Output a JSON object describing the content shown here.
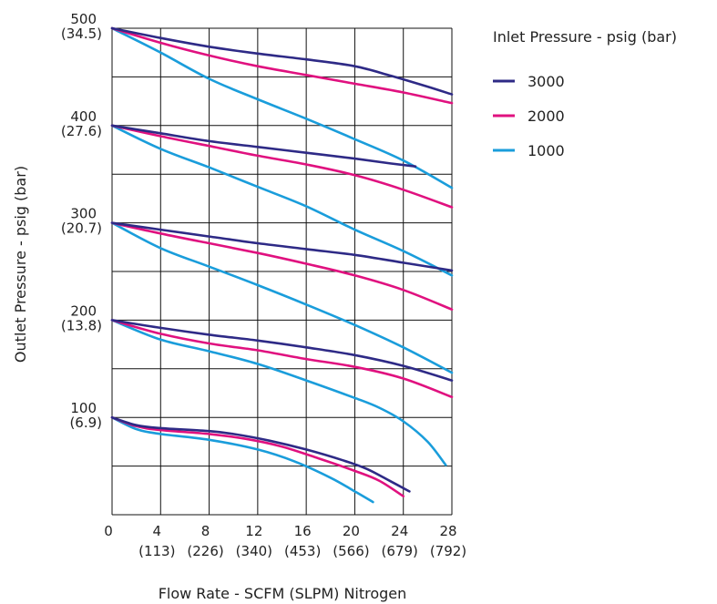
{
  "chart_data": {
    "type": "line",
    "xlabel": "Flow Rate - SCFM (SLPM) Nitrogen",
    "ylabel": "Outlet Pressure - psig (bar)",
    "xlim": [
      0,
      28
    ],
    "ylim": [
      0,
      500
    ],
    "grid": true,
    "x_ticks": [
      {
        "value": 0,
        "label": "0",
        "sub": ""
      },
      {
        "value": 4,
        "label": "4",
        "sub": "(113)"
      },
      {
        "value": 8,
        "label": "8",
        "sub": "(226)"
      },
      {
        "value": 12,
        "label": "12",
        "sub": "(340)"
      },
      {
        "value": 16,
        "label": "16",
        "sub": "(453)"
      },
      {
        "value": 20,
        "label": "20",
        "sub": "(566)"
      },
      {
        "value": 24,
        "label": "24",
        "sub": "(679)"
      },
      {
        "value": 28,
        "label": "28",
        "sub": "(792)"
      }
    ],
    "y_ticks": [
      {
        "value": 100,
        "label": "100",
        "sub": "(6.9)"
      },
      {
        "value": 200,
        "label": "200",
        "sub": "(13.8)"
      },
      {
        "value": 300,
        "label": "300",
        "sub": "(20.7)"
      },
      {
        "value": 400,
        "label": "400",
        "sub": "(27.6)"
      },
      {
        "value": 500,
        "label": "500",
        "sub": "(34.5)"
      }
    ],
    "legend": {
      "title": "Inlet Pressure - psig (bar)",
      "placement": "right"
    },
    "series": [
      {
        "name": "3000",
        "color": "#2e2a86",
        "curves": [
          [
            [
              0,
              500
            ],
            [
              4,
              490
            ],
            [
              8,
              481
            ],
            [
              12,
              474
            ],
            [
              16,
              468
            ],
            [
              20,
              461
            ],
            [
              23,
              451
            ],
            [
              26,
              440
            ],
            [
              28,
              432
            ]
          ],
          [
            [
              0,
              400
            ],
            [
              4,
              392
            ],
            [
              8,
              384
            ],
            [
              12,
              378
            ],
            [
              16,
              372
            ],
            [
              20,
              366
            ],
            [
              23,
              361
            ],
            [
              25,
              358
            ]
          ],
          [
            [
              0,
              300
            ],
            [
              4,
              293
            ],
            [
              8,
              286
            ],
            [
              12,
              279
            ],
            [
              16,
              273
            ],
            [
              20,
              267
            ],
            [
              24,
              259
            ],
            [
              28,
              251
            ]
          ],
          [
            [
              0,
              200
            ],
            [
              4,
              192
            ],
            [
              8,
              185
            ],
            [
              12,
              179
            ],
            [
              16,
              172
            ],
            [
              20,
              164
            ],
            [
              24,
              153
            ],
            [
              28,
              138
            ]
          ],
          [
            [
              0,
              100
            ],
            [
              2,
              92
            ],
            [
              4,
              89
            ],
            [
              8,
              86
            ],
            [
              10,
              83
            ],
            [
              13,
              76
            ],
            [
              16,
              67
            ],
            [
              19,
              56
            ],
            [
              21,
              47
            ],
            [
              23,
              34
            ],
            [
              24.5,
              24
            ]
          ]
        ]
      },
      {
        "name": "2000",
        "color": "#e0117f",
        "curves": [
          [
            [
              0,
              500
            ],
            [
              4,
              485
            ],
            [
              8,
              472
            ],
            [
              12,
              461
            ],
            [
              16,
              452
            ],
            [
              20,
              443
            ],
            [
              24,
              434
            ],
            [
              28,
              423
            ]
          ],
          [
            [
              0,
              400
            ],
            [
              4,
              389
            ],
            [
              8,
              379
            ],
            [
              12,
              369
            ],
            [
              16,
              360
            ],
            [
              20,
              349
            ],
            [
              24,
              334
            ],
            [
              28,
              316
            ]
          ],
          [
            [
              0,
              300
            ],
            [
              4,
              289
            ],
            [
              8,
              279
            ],
            [
              12,
              269
            ],
            [
              16,
              258
            ],
            [
              20,
              246
            ],
            [
              24,
              231
            ],
            [
              28,
              211
            ]
          ],
          [
            [
              0,
              200
            ],
            [
              4,
              186
            ],
            [
              8,
              176
            ],
            [
              12,
              169
            ],
            [
              16,
              160
            ],
            [
              20,
              152
            ],
            [
              24,
              140
            ],
            [
              28,
              121
            ]
          ],
          [
            [
              0,
              100
            ],
            [
              2,
              91
            ],
            [
              4,
              87
            ],
            [
              8,
              83
            ],
            [
              11,
              78
            ],
            [
              14,
              70
            ],
            [
              17,
              58
            ],
            [
              20,
              45
            ],
            [
              22,
              35
            ],
            [
              24,
              19
            ]
          ]
        ]
      },
      {
        "name": "1000",
        "color": "#1a9ddb",
        "curves": [
          [
            [
              0,
              500
            ],
            [
              4,
              475
            ],
            [
              8,
              448
            ],
            [
              12,
              427
            ],
            [
              16,
              407
            ],
            [
              20,
              386
            ],
            [
              24,
              364
            ],
            [
              28,
              336
            ]
          ],
          [
            [
              0,
              400
            ],
            [
              4,
              376
            ],
            [
              8,
              357
            ],
            [
              12,
              337
            ],
            [
              16,
              317
            ],
            [
              20,
              293
            ],
            [
              24,
              271
            ],
            [
              28,
              246
            ]
          ],
          [
            [
              0,
              300
            ],
            [
              4,
              274
            ],
            [
              8,
              255
            ],
            [
              12,
              236
            ],
            [
              16,
              216
            ],
            [
              20,
              195
            ],
            [
              24,
              172
            ],
            [
              28,
              146
            ]
          ],
          [
            [
              0,
              200
            ],
            [
              4,
              180
            ],
            [
              8,
              168
            ],
            [
              12,
              155
            ],
            [
              16,
              138
            ],
            [
              20,
              120
            ],
            [
              22,
              110
            ],
            [
              24,
              96
            ],
            [
              26,
              75
            ],
            [
              27.5,
              51
            ]
          ],
          [
            [
              0,
              100
            ],
            [
              2,
              88
            ],
            [
              4,
              83
            ],
            [
              8,
              77
            ],
            [
              12,
              67
            ],
            [
              15,
              55
            ],
            [
              18,
              38
            ],
            [
              20,
              24
            ],
            [
              21.5,
              13
            ]
          ]
        ]
      }
    ]
  }
}
